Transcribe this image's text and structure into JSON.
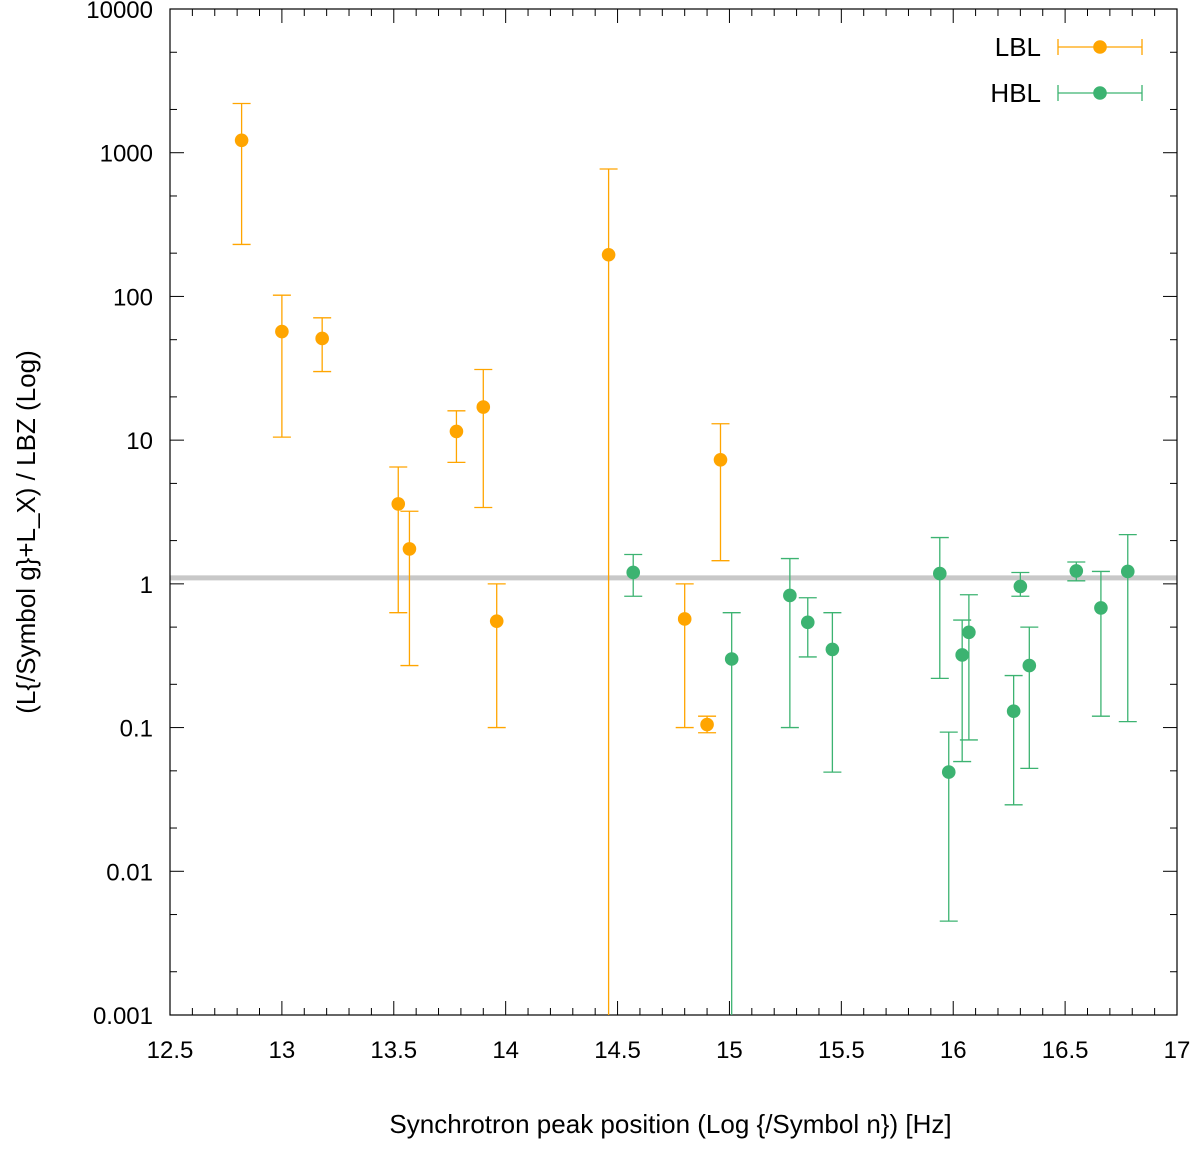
{
  "chart_data": {
    "type": "scatter",
    "title": "",
    "xlabel": "Synchrotron peak position (Log {/Symbol n}) [Hz]",
    "ylabel": "(L{/Symbol g}+L_X) / LBZ (Log)",
    "xlim": [
      12.5,
      17
    ],
    "ylim": [
      0.001,
      10000
    ],
    "yscale": "log",
    "grid": false,
    "legend_position": "top-right",
    "x_ticks": [
      {
        "value": 12.5,
        "label": "12.5"
      },
      {
        "value": 13,
        "label": "13"
      },
      {
        "value": 13.5,
        "label": "13.5"
      },
      {
        "value": 14,
        "label": "14"
      },
      {
        "value": 14.5,
        "label": "14.5"
      },
      {
        "value": 15,
        "label": "15"
      },
      {
        "value": 15.5,
        "label": "15.5"
      },
      {
        "value": 16,
        "label": "16"
      },
      {
        "value": 16.5,
        "label": "16.5"
      },
      {
        "value": 17,
        "label": "17"
      }
    ],
    "y_ticks": [
      {
        "value": 0.001,
        "label": "0.001"
      },
      {
        "value": 0.01,
        "label": "0.01"
      },
      {
        "value": 0.1,
        "label": "0.1"
      },
      {
        "value": 1,
        "label": "1"
      },
      {
        "value": 10,
        "label": "10"
      },
      {
        "value": 100,
        "label": "100"
      },
      {
        "value": 1000,
        "label": "1000"
      },
      {
        "value": 10000,
        "label": "10000"
      }
    ],
    "reference_line": {
      "y": 1.1,
      "color": "#c8c8c8"
    },
    "series": [
      {
        "name": "LBL",
        "color": "#ffa500",
        "points": [
          {
            "x": 12.82,
            "y": 1220,
            "ylow": 230,
            "yhigh": 2200
          },
          {
            "x": 13.0,
            "y": 57,
            "ylow": 10.5,
            "yhigh": 102
          },
          {
            "x": 13.18,
            "y": 51,
            "ylow": 30,
            "yhigh": 71
          },
          {
            "x": 13.52,
            "y": 3.6,
            "ylow": 0.63,
            "yhigh": 6.5
          },
          {
            "x": 13.57,
            "y": 1.75,
            "ylow": 0.27,
            "yhigh": 3.2
          },
          {
            "x": 13.78,
            "y": 11.5,
            "ylow": 7,
            "yhigh": 16
          },
          {
            "x": 13.9,
            "y": 17,
            "ylow": 3.4,
            "yhigh": 31
          },
          {
            "x": 13.96,
            "y": 0.55,
            "ylow": 0.1,
            "yhigh": 1.0
          },
          {
            "x": 14.46,
            "y": 195,
            "ylow": 0.001,
            "yhigh": 770
          },
          {
            "x": 14.8,
            "y": 0.57,
            "ylow": 0.1,
            "yhigh": 1.0
          },
          {
            "x": 14.9,
            "y": 0.105,
            "ylow": 0.092,
            "yhigh": 0.12
          },
          {
            "x": 14.96,
            "y": 7.3,
            "ylow": 1.45,
            "yhigh": 13
          }
        ]
      },
      {
        "name": "HBL",
        "color": "#3cb371",
        "points": [
          {
            "x": 14.57,
            "y": 1.2,
            "ylow": 0.82,
            "yhigh": 1.6
          },
          {
            "x": 15.01,
            "y": 0.3,
            "ylow": 0.001,
            "yhigh": 0.63
          },
          {
            "x": 15.27,
            "y": 0.83,
            "ylow": 0.1,
            "yhigh": 1.5
          },
          {
            "x": 15.35,
            "y": 0.54,
            "ylow": 0.31,
            "yhigh": 0.8
          },
          {
            "x": 15.46,
            "y": 0.35,
            "ylow": 0.049,
            "yhigh": 0.63
          },
          {
            "x": 15.94,
            "y": 1.18,
            "ylow": 0.22,
            "yhigh": 2.1
          },
          {
            "x": 15.98,
            "y": 0.049,
            "ylow": 0.0045,
            "yhigh": 0.093
          },
          {
            "x": 16.04,
            "y": 0.32,
            "ylow": 0.058,
            "yhigh": 0.56
          },
          {
            "x": 16.07,
            "y": 0.46,
            "ylow": 0.082,
            "yhigh": 0.84
          },
          {
            "x": 16.27,
            "y": 0.13,
            "ylow": 0.029,
            "yhigh": 0.23
          },
          {
            "x": 16.3,
            "y": 0.96,
            "ylow": 0.82,
            "yhigh": 1.2
          },
          {
            "x": 16.34,
            "y": 0.27,
            "ylow": 0.052,
            "yhigh": 0.5
          },
          {
            "x": 16.55,
            "y": 1.23,
            "ylow": 1.05,
            "yhigh": 1.42
          },
          {
            "x": 16.66,
            "y": 0.68,
            "ylow": 0.12,
            "yhigh": 1.22
          },
          {
            "x": 16.78,
            "y": 1.22,
            "ylow": 0.11,
            "yhigh": 2.2
          }
        ]
      }
    ]
  }
}
